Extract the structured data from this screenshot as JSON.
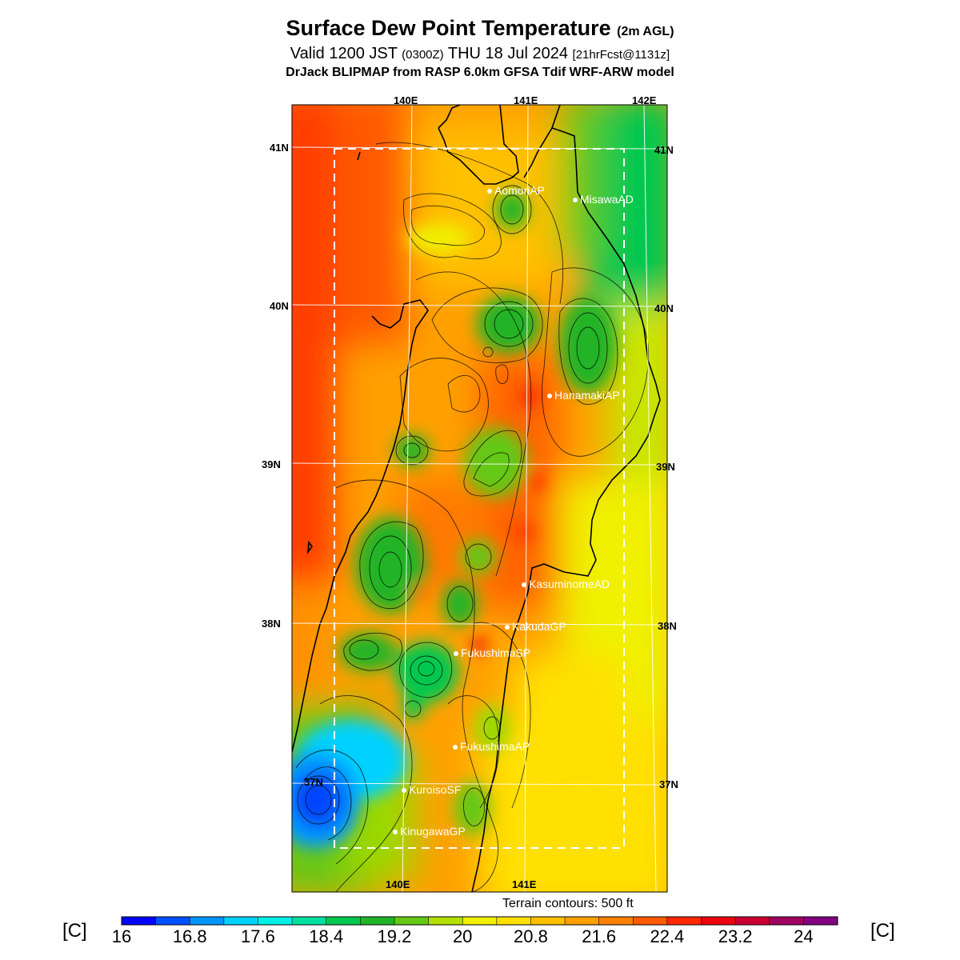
{
  "title": {
    "main": "Surface Dew Point Temperature",
    "main_suffix": "(2m AGL)",
    "valid_prefix": "Valid 1200 JST",
    "valid_utc": "(0300Z)",
    "valid_date": "THU 18 Jul 2024",
    "valid_fcst": "[21hrFcst@1131z]",
    "model_line": "DrJack BLIPMAP from RASP 6.0km GFSA Tdif WRF-ARW model"
  },
  "map": {
    "lon_labels_top": [
      "140E",
      "141E",
      "142E"
    ],
    "lon_labels_bottom": [
      "140E",
      "141E"
    ],
    "lat_labels_left": [
      "41N",
      "40N",
      "39N",
      "38N",
      "37N"
    ],
    "lat_labels_right": [
      "41N",
      "40N",
      "39N",
      "38N",
      "37N"
    ],
    "stations": [
      {
        "name": "AomoriAP"
      },
      {
        "name": "MisawaAD"
      },
      {
        "name": "HanamakiAP"
      },
      {
        "name": "KasuminomeAD"
      },
      {
        "name": "KakudaGP"
      },
      {
        "name": "FukushimaSP"
      },
      {
        "name": "FukushimaAP"
      },
      {
        "name": "KuroisoSF"
      },
      {
        "name": "KinugawaGP"
      }
    ],
    "terrain_note": "Terrain contours: 500 ft"
  },
  "colorbar": {
    "unit_left": "[C]",
    "unit_right": "[C]",
    "ticks": [
      "16",
      "16.8",
      "17.6",
      "18.4",
      "19.2",
      "20",
      "20.8",
      "21.6",
      "22.4",
      "23.2",
      "24"
    ],
    "colors": [
      "#0000ff",
      "#0050ff",
      "#0096ff",
      "#00d2ff",
      "#00f0e6",
      "#00e0a0",
      "#00c850",
      "#20b428",
      "#64c814",
      "#b4e000",
      "#f0f000",
      "#ffe000",
      "#ffc000",
      "#ffa000",
      "#ff8000",
      "#ff5a00",
      "#ff2800",
      "#ee0010",
      "#cc0030",
      "#a00060",
      "#800080"
    ]
  }
}
